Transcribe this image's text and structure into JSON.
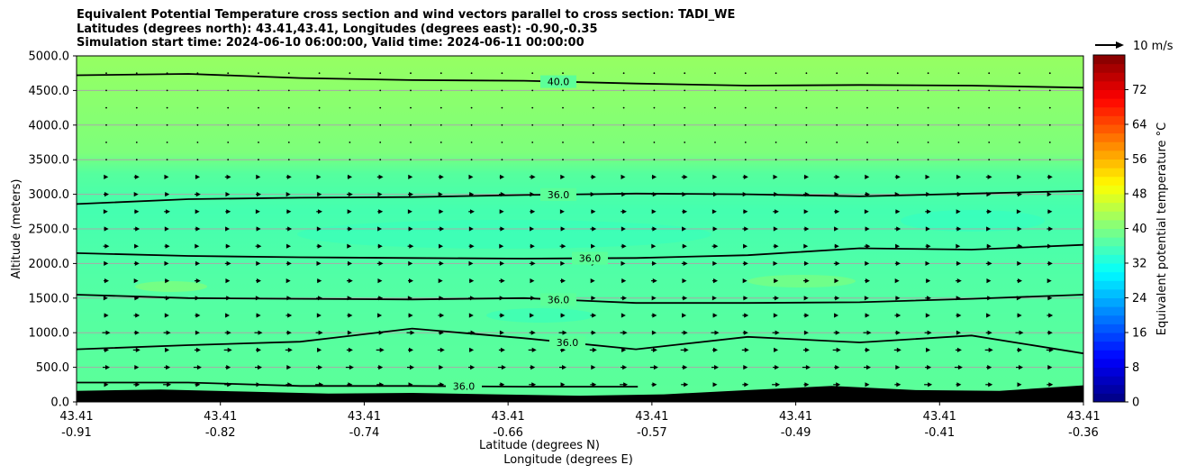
{
  "chart_data": {
    "type": "contourf",
    "title_lines": [
      "Equivalent Potential Temperature cross section and wind vectors parallel to cross section: TADI_WE",
      "Latitudes (degrees north): 43.41,43.41, Longitudes (degrees east): -0.90,-0.35",
      "Simulation start time: 2024-06-10 06:00:00, Valid time: 2024-06-11 00:00:00"
    ],
    "xlabel_lat": "Latitude (degrees N)",
    "xlabel_lon": "Longitude (degrees E)",
    "ylabel": "Altitude (meters)",
    "ylim": [
      0,
      5000
    ],
    "y_ticks": [
      "0.0",
      "500.0",
      "1000.0",
      "1500.0",
      "2000.0",
      "2500.0",
      "3000.0",
      "3500.0",
      "4000.0",
      "4500.0",
      "5000.0"
    ],
    "x_ticks": [
      {
        "lat": "43.41",
        "lon": "-0.91"
      },
      {
        "lat": "43.41",
        "lon": "-0.82"
      },
      {
        "lat": "43.41",
        "lon": "-0.74"
      },
      {
        "lat": "43.41",
        "lon": "-0.66"
      },
      {
        "lat": "43.41",
        "lon": "-0.57"
      },
      {
        "lat": "43.41",
        "lon": "-0.49"
      },
      {
        "lat": "43.41",
        "lon": "-0.41"
      },
      {
        "lat": "43.41",
        "lon": "-0.36"
      }
    ],
    "colorbar": {
      "label": "Equivalent potential temperature °C",
      "range": [
        0,
        80
      ],
      "ticks": [
        "0",
        "8",
        "16",
        "24",
        "32",
        "40",
        "48",
        "56",
        "64",
        "72"
      ]
    },
    "quiver_key": "10 m/s",
    "contours": [
      {
        "label": "40.0",
        "y": [
          4720,
          4740,
          4680,
          4650,
          4640,
          4600,
          4570,
          4580,
          4570,
          4540
        ]
      },
      {
        "label": "36.0",
        "y": [
          2860,
          2930,
          2950,
          2960,
          2990,
          3010,
          3000,
          2970,
          3010,
          3050
        ]
      },
      {
        "label": "36.0",
        "y": [
          2150,
          2110,
          2090,
          2080,
          2070,
          2080,
          2120,
          2220,
          2200,
          2270
        ]
      },
      {
        "label": "36.0",
        "y": [
          1550,
          1500,
          1490,
          1480,
          1500,
          1430,
          1430,
          1440,
          1490,
          1550
        ]
      },
      {
        "label": "36.0",
        "y": [
          760,
          820,
          870,
          1060,
          920,
          760,
          940,
          860,
          960,
          700
        ]
      },
      {
        "label": "36.0",
        "y": [
          280,
          280,
          230,
          230,
          220,
          null,
          null,
          null,
          null,
          null
        ]
      }
    ],
    "terrain": [
      160,
      180,
      150,
      120,
      130,
      110,
      90,
      110,
      170,
      230,
      170,
      160,
      240
    ]
  }
}
